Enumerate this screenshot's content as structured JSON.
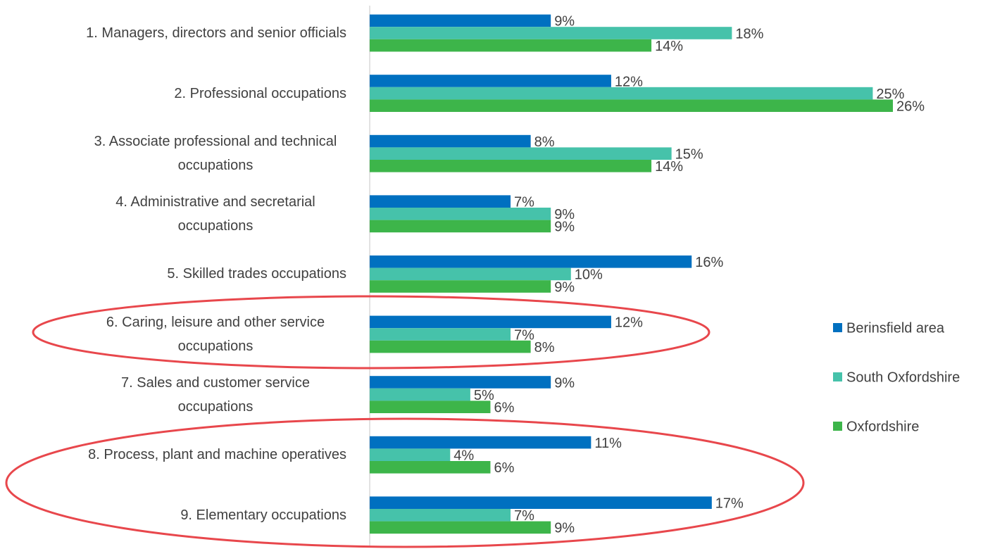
{
  "chart_data": {
    "type": "bar",
    "orientation": "horizontal",
    "categories": [
      "1. Managers, directors and senior officials",
      "2. Professional occupations",
      "3. Associate professional and technical occupations",
      "4. Administrative and secretarial occupations",
      "5. Skilled trades occupations",
      "6. Caring, leisure and other service occupations",
      "7. Sales and customer service occupations",
      "8. Process, plant and machine operatives",
      "9. Elementary occupations"
    ],
    "series": [
      {
        "name": "Berinsfield area",
        "color": "#0070c0",
        "values": [
          9,
          12,
          8,
          7,
          16,
          12,
          9,
          11,
          17
        ],
        "value_labels": [
          "9%",
          "12%",
          "8%",
          "7%",
          "16%",
          "12%",
          "9%",
          "11%",
          "17%"
        ]
      },
      {
        "name": "South Oxfordshire",
        "color": "#46c2aa",
        "values": [
          18,
          25,
          15,
          9,
          10,
          7,
          5,
          4,
          7
        ],
        "value_labels": [
          "18%",
          "25%",
          "15%",
          "9%",
          "10%",
          "7%",
          "5%",
          "4%",
          "7%"
        ]
      },
      {
        "name": "Oxfordshire",
        "color": "#3db54a",
        "values": [
          14,
          26,
          14,
          9,
          9,
          8,
          6,
          6,
          9
        ],
        "value_labels": [
          "14%",
          "26%",
          "14%",
          "9%",
          "9%",
          "8%",
          "6%",
          "6%",
          "9%"
        ]
      }
    ],
    "legend": "right"
  }
}
